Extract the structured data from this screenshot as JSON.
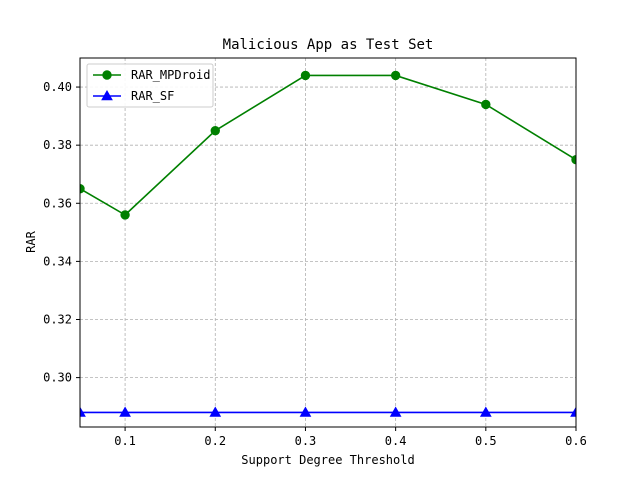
{
  "chart_data": {
    "type": "line",
    "title": "Malicious App as Test Set",
    "xlabel": "Support Degree Threshold",
    "ylabel": "RAR",
    "x": [
      0.05,
      0.1,
      0.2,
      0.3,
      0.4,
      0.5,
      0.6
    ],
    "xlim": [
      0.05,
      0.6
    ],
    "ylim": [
      0.283,
      0.41
    ],
    "xticks": [
      0.1,
      0.2,
      0.3,
      0.4,
      0.5,
      0.6
    ],
    "xtick_labels": [
      "0.1",
      "0.2",
      "0.3",
      "0.4",
      "0.5",
      "0.6"
    ],
    "yticks": [
      0.3,
      0.32,
      0.34,
      0.36,
      0.38,
      0.4
    ],
    "ytick_labels": [
      "0.30",
      "0.32",
      "0.34",
      "0.36",
      "0.38",
      "0.40"
    ],
    "grid": true,
    "legend_position": "top-left",
    "series": [
      {
        "name": "RAR_MPDroid",
        "color": "#008000",
        "marker": "circle",
        "values": [
          0.365,
          0.356,
          0.385,
          0.404,
          0.404,
          0.394,
          0.375
        ]
      },
      {
        "name": "RAR_SF",
        "color": "#0000ff",
        "marker": "triangle",
        "values": [
          0.288,
          0.288,
          0.288,
          0.288,
          0.288,
          0.288,
          0.288
        ]
      }
    ]
  }
}
